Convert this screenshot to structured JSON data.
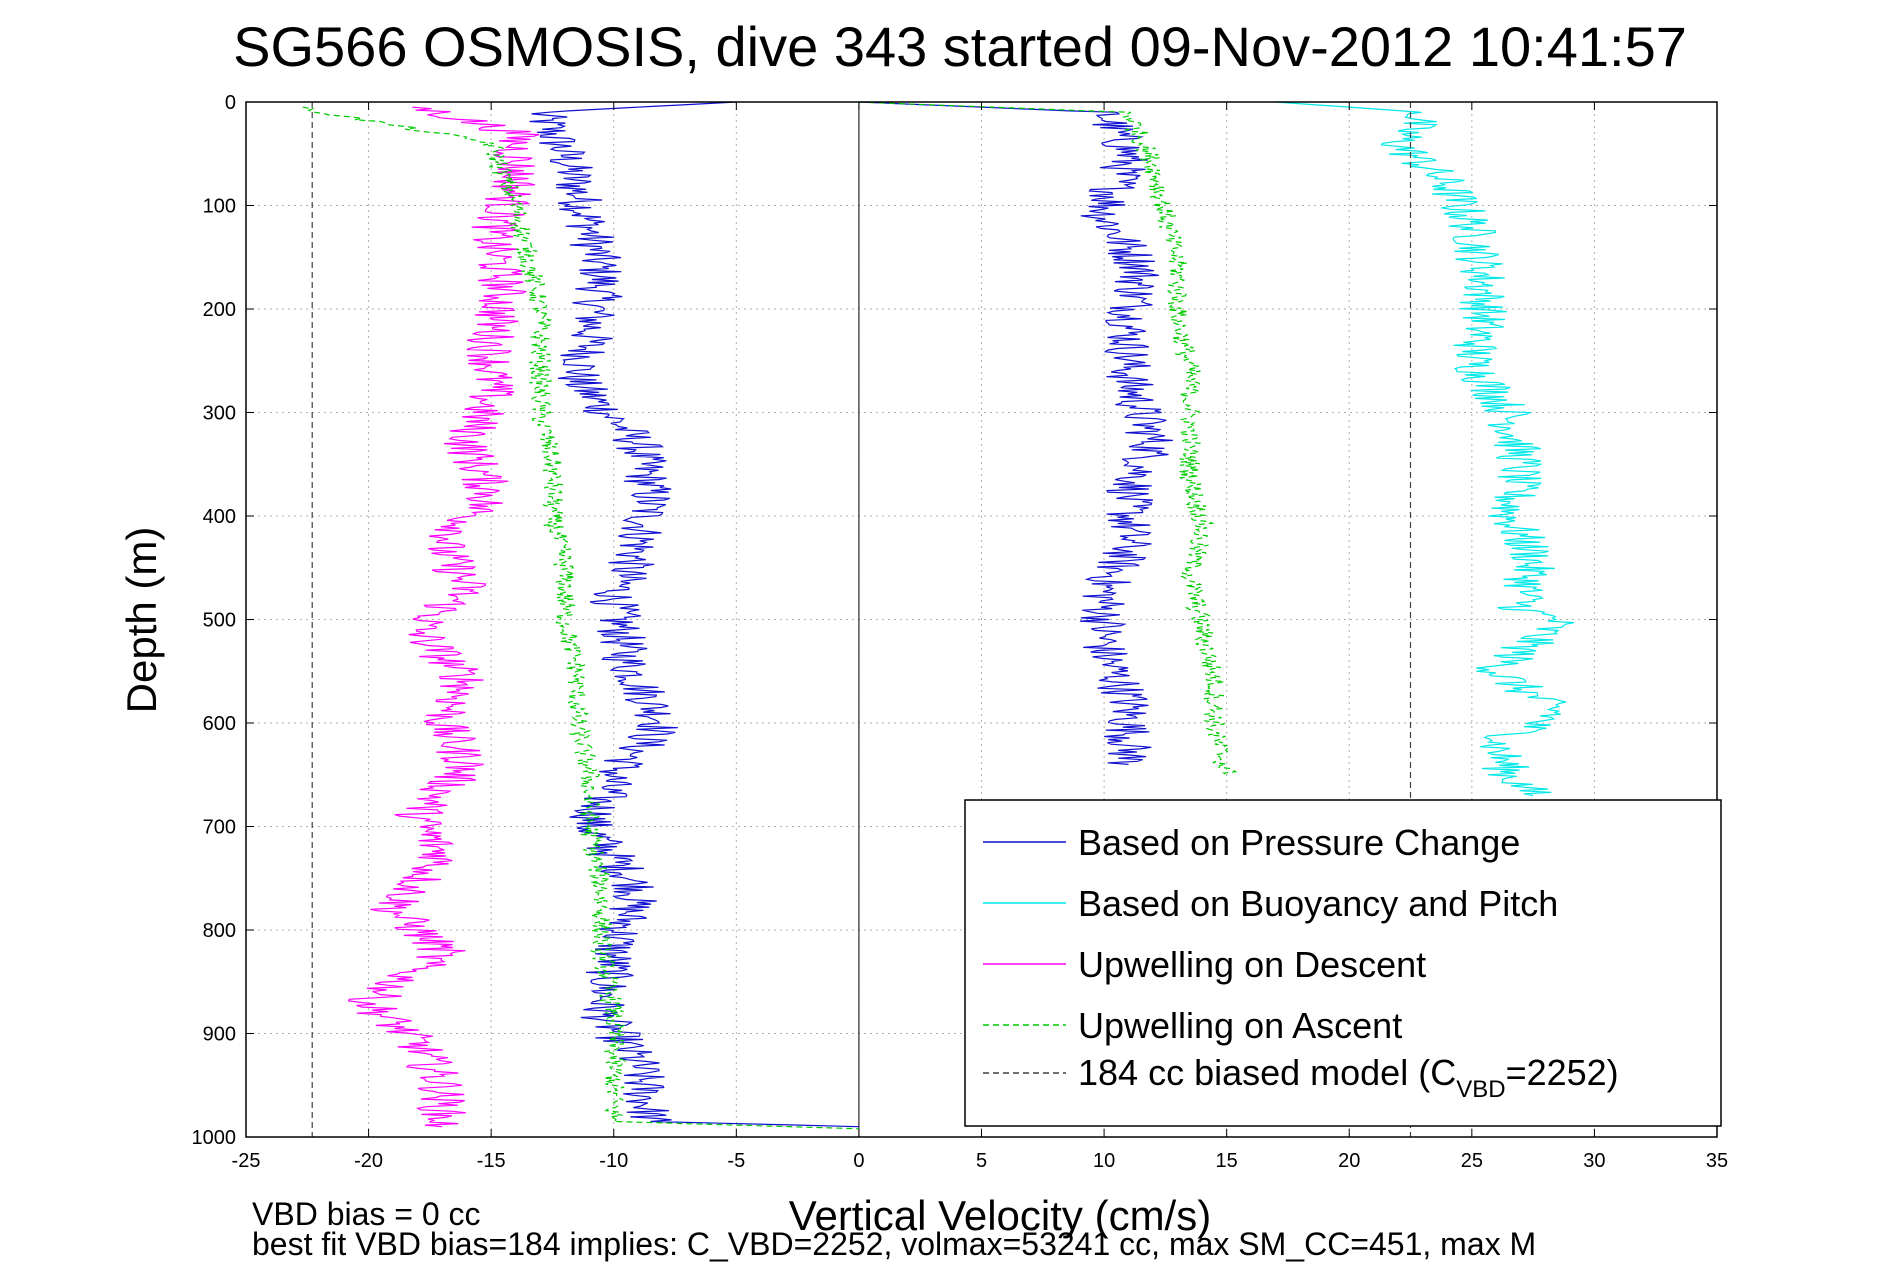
{
  "chart_data": {
    "type": "line",
    "title": "SG566 OSMOSIS, dive 343 started 09-Nov-2012 10:41:57",
    "xlabel": "Vertical Velocity (cm/s)",
    "ylabel": "Depth (m)",
    "xlim": [
      -25,
      35
    ],
    "ylim": [
      0,
      1000
    ],
    "y_reversed": true,
    "grid": true,
    "x_ticks": [
      -25,
      -20,
      -15,
      -10,
      -5,
      0,
      5,
      10,
      15,
      20,
      25,
      30,
      35
    ],
    "y_ticks": [
      0,
      100,
      200,
      300,
      400,
      500,
      600,
      700,
      800,
      900,
      1000
    ],
    "legend_position": "bottom-right",
    "colors": {
      "pressure": "#1010d0",
      "buoyancy": "#00e8e8",
      "descent": "#ff00ff",
      "ascent": "#00cc00",
      "model": "#404040",
      "grid": "#b0b0b0"
    },
    "series": [
      {
        "name": "Based on Pressure Change",
        "style": "solid",
        "color": "#1010d0",
        "branches": [
          {
            "points": [
              [
                -5,
                0
              ],
              [
                -13,
                10
              ],
              [
                -12,
                50
              ],
              [
                -11,
                120
              ],
              [
                -10.5,
                170
              ],
              [
                -11,
                230
              ],
              [
                -11.5,
                270
              ],
              [
                -9,
                330
              ],
              [
                -8.5,
                380
              ],
              [
                -9,
                430
              ],
              [
                -10,
                480
              ],
              [
                -9.5,
                540
              ],
              [
                -8,
                600
              ],
              [
                -10,
                650
              ],
              [
                -11,
                700
              ],
              [
                -9,
                760
              ],
              [
                -10,
                820
              ],
              [
                -10.5,
                880
              ],
              [
                -9,
                930
              ],
              [
                -8.5,
                985
              ],
              [
                0,
                990
              ]
            ]
          },
          {
            "points": [
              [
                0,
                0
              ],
              [
                10,
                10
              ],
              [
                11,
                50
              ],
              [
                10,
                110
              ],
              [
                11.5,
                160
              ],
              [
                11,
                220
              ],
              [
                11,
                270
              ],
              [
                12,
                330
              ],
              [
                11,
                380
              ],
              [
                11,
                430
              ],
              [
                10,
                470
              ],
              [
                10,
                530
              ],
              [
                11,
                580
              ],
              [
                11,
                640
              ]
            ]
          }
        ]
      },
      {
        "name": "Based on Buoyancy and Pitch",
        "style": "solid",
        "color": "#00e8e8",
        "branches": [
          {
            "points": [
              [
                17,
                0
              ],
              [
                23,
                10
              ],
              [
                22,
                40
              ],
              [
                24,
                80
              ],
              [
                25,
                120
              ],
              [
                25.5,
                170
              ],
              [
                25.5,
                210
              ],
              [
                25,
                250
              ],
              [
                26.5,
                300
              ],
              [
                27,
                350
              ],
              [
                26.5,
                400
              ],
              [
                27.5,
                440
              ],
              [
                27,
                490
              ],
              [
                28.5,
                500
              ],
              [
                26,
                550
              ],
              [
                28.5,
                590
              ],
              [
                26,
                620
              ],
              [
                26.5,
                650
              ],
              [
                27.5,
                670
              ]
            ]
          }
        ]
      },
      {
        "name": "Upwelling on Descent",
        "style": "solid",
        "color": "#ff00ff",
        "branches": [
          {
            "points": [
              [
                -18,
                5
              ],
              [
                -14,
                30
              ],
              [
                -14,
                80
              ],
              [
                -15,
                130
              ],
              [
                -14.5,
                180
              ],
              [
                -15,
                230
              ],
              [
                -15,
                280
              ],
              [
                -16,
                330
              ],
              [
                -15,
                380
              ],
              [
                -17,
                430
              ],
              [
                -16,
                470
              ],
              [
                -18,
                510
              ],
              [
                -16,
                560
              ],
              [
                -17,
                600
              ],
              [
                -16,
                640
              ],
              [
                -18,
                690
              ],
              [
                -17,
                730
              ],
              [
                -19,
                780
              ],
              [
                -17,
                820
              ],
              [
                -20,
                870
              ],
              [
                -18,
                910
              ],
              [
                -17,
                950
              ],
              [
                -17,
                990
              ]
            ]
          }
        ]
      },
      {
        "name": "Upwelling on Ascent",
        "style": "dashed",
        "color": "#00cc00",
        "branches": [
          {
            "points": [
              [
                -23,
                5
              ],
              [
                -15,
                40
              ],
              [
                -14,
                100
              ],
              [
                -13.5,
                150
              ],
              [
                -13,
                200
              ],
              [
                -13,
                250
              ],
              [
                -13,
                300
              ],
              [
                -12.5,
                350
              ],
              [
                -12.5,
                400
              ],
              [
                -12,
                450
              ],
              [
                -12,
                500
              ],
              [
                -11.5,
                550
              ],
              [
                -11.5,
                600
              ],
              [
                -11,
                650
              ],
              [
                -11,
                700
              ],
              [
                -10.5,
                760
              ],
              [
                -10.5,
                820
              ],
              [
                -10,
                880
              ],
              [
                -10,
                940
              ],
              [
                -10,
                985
              ],
              [
                0,
                992
              ]
            ]
          },
          {
            "points": [
              [
                0,
                0
              ],
              [
                11,
                10
              ],
              [
                12,
                60
              ],
              [
                12.5,
                110
              ],
              [
                13,
                160
              ],
              [
                13,
                210
              ],
              [
                13.5,
                260
              ],
              [
                13.5,
                310
              ],
              [
                13.5,
                360
              ],
              [
                14,
                410
              ],
              [
                13.5,
                460
              ],
              [
                14,
                510
              ],
              [
                14.5,
                560
              ],
              [
                14.5,
                610
              ],
              [
                15,
                650
              ]
            ]
          }
        ]
      },
      {
        "name": "184 cc biased model (C_VBD=2252)",
        "style": "dashed",
        "color": "#404040",
        "branches": [
          {
            "points": [
              [
                -22.3,
                0
              ],
              [
                -22.3,
                1000
              ]
            ]
          },
          {
            "points": [
              [
                22.5,
                0
              ],
              [
                22.5,
                1000
              ]
            ]
          }
        ]
      }
    ],
    "legend": {
      "pressure": "Based on Pressure Change",
      "buoyancy": "Based on Buoyancy and Pitch",
      "descent": "Upwelling on Descent",
      "ascent": "Upwelling on Ascent",
      "model_prefix": "184 cc biased model (C",
      "model_sub": "VBD",
      "model_suffix": "=2252)"
    },
    "footnotes": {
      "line1": "VBD bias = 0 cc",
      "line2": "best fit VBD bias=184 implies: C_VBD=2252, volmax=53241 cc, max SM_CC=451, max M"
    }
  }
}
